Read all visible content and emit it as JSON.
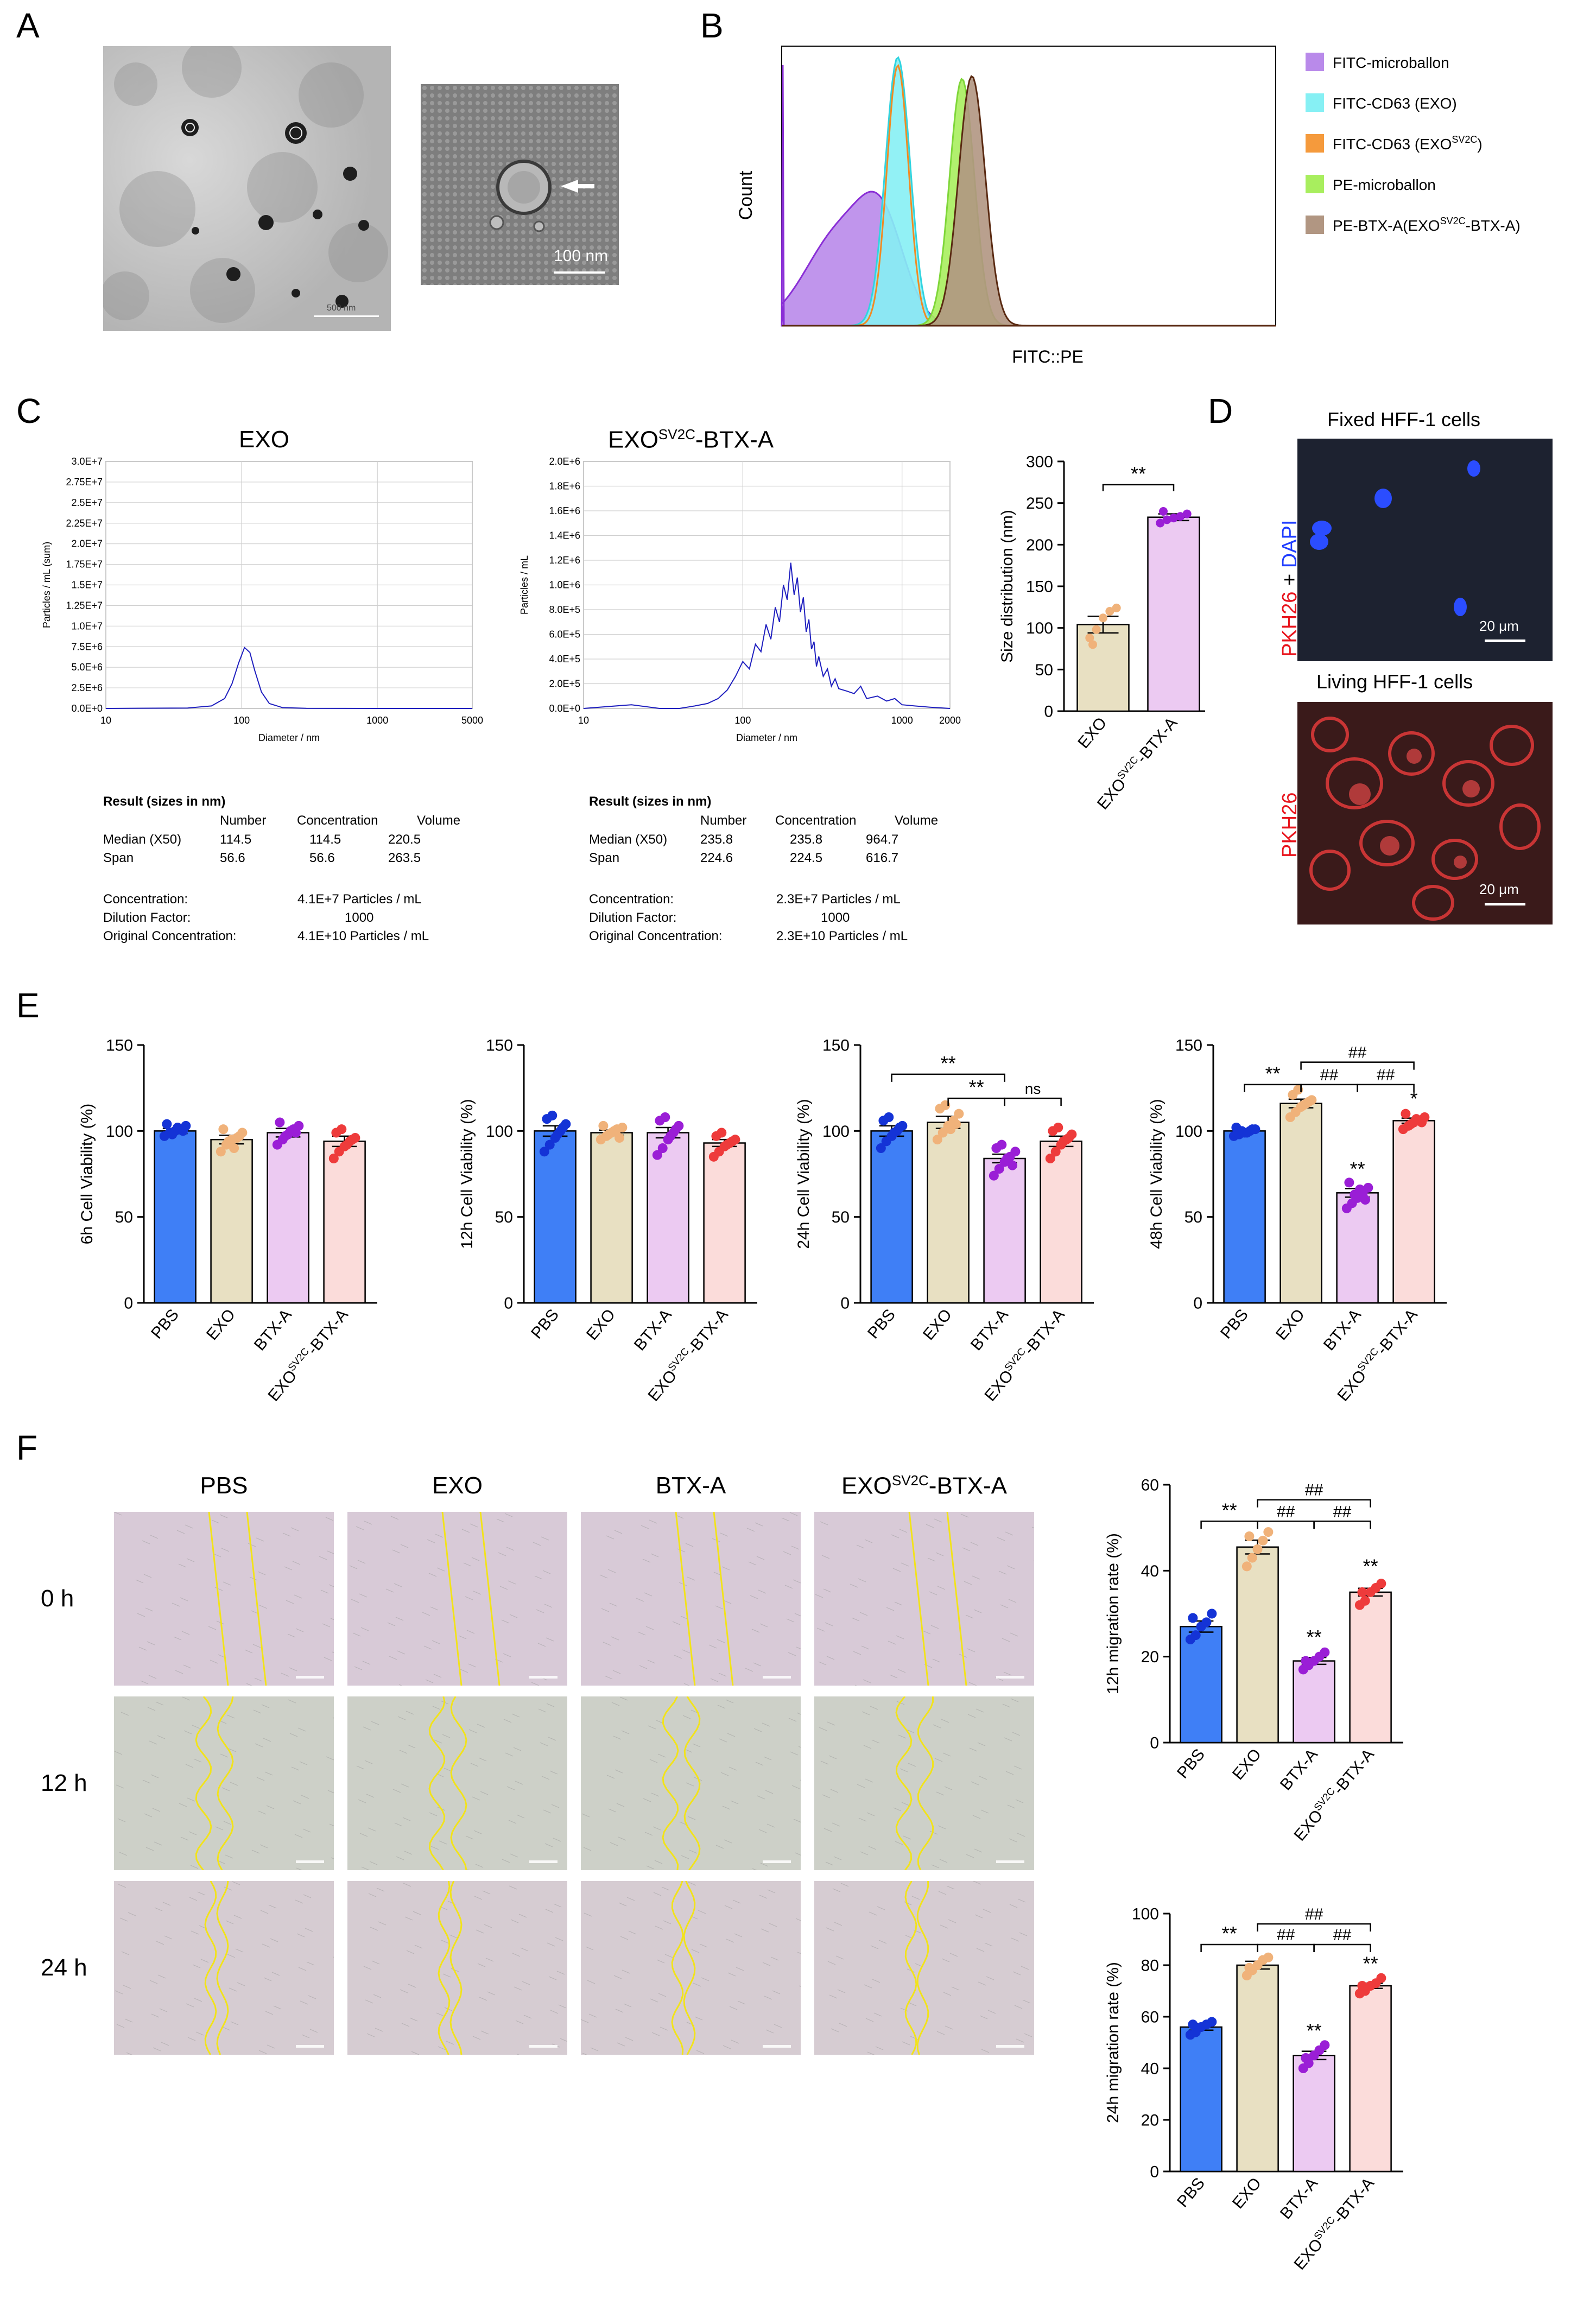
{
  "panel_labels": {
    "A": "A",
    "B": "B",
    "C": "C",
    "D": "D",
    "E": "E",
    "F": "F"
  },
  "panelA": {
    "scale_bar_right": "100 nm",
    "scale_bar_left": "500 nm"
  },
  "panelB": {
    "ylabel": "Count",
    "xlabel": "FITC::PE",
    "legend": [
      {
        "name": "FITC-microballon",
        "color": "#b98aea"
      },
      {
        "name": "FITC-CD63 (EXO)",
        "color": "#86f0f4"
      },
      {
        "name": "FITC-CD63 (EXO^SV2C)",
        "pre": "FITC-CD63 (EXO",
        "sup": "SV2C",
        "post": ")",
        "color": "#f59a3c"
      },
      {
        "name": "PE-microballon",
        "color": "#a8ee5e"
      },
      {
        "name": "PE-BTX-A(EXO^SV2C-BTX-A)",
        "pre": "PE-BTX-A(EXO",
        "sup": "SV2C",
        "post": "-BTX-A)",
        "color": "#b19682"
      }
    ]
  },
  "panelC": {
    "exo": {
      "title": "EXO",
      "ylabel": "Particles / mL (sum)",
      "xlabel": "Diameter / nm",
      "yticks": [
        "0.0E+0",
        "2.5E+6",
        "5.0E+6",
        "7.5E+6",
        "1.0E+7",
        "1.25E+7",
        "1.5E+7",
        "1.75E+7",
        "2.0E+7",
        "2.25E+7",
        "2.5E+7",
        "2.75E+7",
        "3.0E+7"
      ],
      "xticks": [
        "10",
        "100",
        "1000",
        "5000"
      ],
      "result_title": "Result (sizes in nm)",
      "hdr_number": "Number",
      "hdr_conc": "Concentration",
      "hdr_vol": "Volume",
      "median_label": "Median (X50)",
      "median": [
        "114.5",
        "114.5",
        "220.5"
      ],
      "span_label": "Span",
      "span": [
        "56.6",
        "56.6",
        "263.5"
      ],
      "conc_label": "Concentration:",
      "conc": "4.1E+7 Particles / mL",
      "dil_label": "Dilution Factor:",
      "dil": "1000",
      "orig_label": "Original Concentration:",
      "orig": "4.1E+10 Particles / mL"
    },
    "btx": {
      "title_pre": "EXO",
      "title_sup": "SV2C",
      "title_post": "-BTX-A",
      "ylabel": "Particles / mL",
      "xlabel": "Diameter / nm",
      "yticks": [
        "0.0E+0",
        "2.0E+5",
        "4.0E+5",
        "6.0E+5",
        "8.0E+5",
        "1.0E+6",
        "1.2E+6",
        "1.4E+6",
        "1.6E+6",
        "1.8E+6",
        "2.0E+6"
      ],
      "xticks": [
        "10",
        "100",
        "1000",
        "2000"
      ],
      "result_title": "Result (sizes in nm)",
      "hdr_number": "Number",
      "hdr_conc": "Concentration",
      "hdr_vol": "Volume",
      "median_label": "Median (X50)",
      "median": [
        "235.8",
        "235.8",
        "964.7"
      ],
      "span_label": "Span",
      "span": [
        "224.6",
        "224.5",
        "616.7"
      ],
      "conc_label": "Concentration:",
      "conc": "2.3E+7 Particles / mL",
      "dil_label": "Dilution Factor:",
      "dil": "1000",
      "orig_label": "Original Concentration:",
      "orig": "2.3E+10 Particles / mL"
    },
    "bar_ylabel": "Size distribution (nm)",
    "bar_sig": "**"
  },
  "panelD": {
    "fixed_title": "Fixed HFF-1 cells",
    "living_title": "Living HFF-1 cells",
    "label_pkh": "PKH26",
    "label_plus": " + ",
    "label_dapi": "DAPI",
    "scale": "20 μm"
  },
  "colors": {
    "PBS": "#3f7ff6",
    "EXO": "#e8e0c2",
    "BTX-A": "#eccaf2",
    "EXO_SV2C_BTX": "#fbdcda",
    "dot_PBS": "#1433d6",
    "dot_EXO": "#f0b27a",
    "dot_BTX": "#9a1ed6",
    "dot_EXOSV": "#ee3b3b"
  },
  "categories": [
    "PBS",
    "EXO",
    "BTX-A",
    "EXO^SV2C-BTX-A"
  ],
  "cat_sup": {
    "pre": "EXO",
    "sup": "SV2C",
    "post": "-BTX-A"
  },
  "panelF": {
    "cols": [
      "PBS",
      "EXO",
      "BTX-A",
      "EXO^SV2C-BTX-A"
    ],
    "rows": [
      "0 h",
      "12 h",
      "24 h"
    ]
  },
  "chart_data": [
    {
      "id": "C_exo_nta",
      "type": "line",
      "title": "EXO",
      "xlabel": "Diameter / nm",
      "ylabel": "Particles / mL (sum)",
      "xscale": "log",
      "xlim": [
        10,
        5000
      ],
      "ylim": [
        0,
        30000000
      ],
      "x": [
        10,
        40,
        60,
        75,
        85,
        95,
        105,
        115,
        125,
        140,
        160,
        200,
        300,
        1000,
        5000
      ],
      "y": [
        0,
        50000,
        300000,
        1200000,
        3000000,
        5500000,
        7400000,
        6800000,
        4600000,
        2000000,
        600000,
        100000,
        20000,
        0,
        0
      ]
    },
    {
      "id": "C_btx_nta",
      "type": "line",
      "title": "EXO^SV2C-BTX-A",
      "xlabel": "Diameter / nm",
      "ylabel": "Particles / mL",
      "xscale": "log",
      "xlim": [
        10,
        2000
      ],
      "ylim": [
        0,
        2000000
      ],
      "x": [
        10,
        20,
        30,
        40,
        50,
        60,
        70,
        80,
        90,
        100,
        110,
        120,
        130,
        140,
        150,
        160,
        170,
        180,
        190,
        200,
        210,
        220,
        230,
        240,
        250,
        260,
        270,
        280,
        290,
        300,
        320,
        340,
        360,
        380,
        400,
        450,
        500,
        550,
        600,
        700,
        800,
        900,
        1000,
        1200,
        1500,
        2000
      ],
      "y": [
        0,
        30000,
        0,
        0,
        20000,
        40000,
        80000,
        150000,
        260000,
        380000,
        320000,
        520000,
        460000,
        680000,
        560000,
        820000,
        700000,
        1000000,
        880000,
        1180000,
        920000,
        1060000,
        780000,
        900000,
        620000,
        720000,
        480000,
        540000,
        340000,
        420000,
        260000,
        320000,
        180000,
        240000,
        160000,
        140000,
        120000,
        180000,
        80000,
        100000,
        60000,
        80000,
        30000,
        20000,
        10000,
        0
      ]
    },
    {
      "id": "C_size",
      "type": "bar",
      "ylabel": "Size distribution (nm)",
      "ylim": [
        0,
        300
      ],
      "categories": [
        "EXO",
        "EXO^SV2C-BTX-A"
      ],
      "values": [
        104,
        233
      ],
      "sem": [
        10,
        4
      ],
      "points": [
        [
          88,
          98,
          112,
          120,
          124,
          80
        ],
        [
          226,
          230,
          232,
          234,
          237,
          240
        ]
      ]
    },
    {
      "id": "E_6h",
      "type": "bar",
      "ylabel": "6h Cell Viability (%)",
      "ylim": [
        0,
        150
      ],
      "categories": [
        "PBS",
        "EXO",
        "BTX-A",
        "EXO^SV2C-BTX-A"
      ],
      "values": [
        100,
        95,
        99,
        94
      ],
      "sem": [
        1.5,
        2.5,
        2.5,
        3
      ],
      "points": [
        [
          97,
          99,
          100,
          101,
          103,
          104,
          98,
          102,
          100
        ],
        [
          88,
          92,
          95,
          96,
          99,
          101,
          94,
          90,
          97
        ],
        [
          92,
          95,
          98,
          101,
          103,
          105,
          97,
          100,
          99
        ],
        [
          84,
          88,
          91,
          94,
          96,
          99,
          101,
          92,
          95
        ]
      ]
    },
    {
      "id": "E_12h",
      "type": "bar",
      "ylabel": "12h Cell Viability (%)",
      "ylim": [
        0,
        150
      ],
      "categories": [
        "PBS",
        "EXO",
        "BTX-A",
        "EXO^SV2C-BTX-A"
      ],
      "values": [
        100,
        99,
        99,
        93
      ],
      "sem": [
        3,
        1.5,
        3,
        2
      ],
      "points": [
        [
          88,
          92,
          96,
          100,
          104,
          107,
          109,
          98,
          102
        ],
        [
          95,
          97,
          99,
          101,
          102,
          103,
          98,
          100,
          96
        ],
        [
          86,
          90,
          95,
          99,
          103,
          106,
          108,
          97,
          101
        ],
        [
          85,
          88,
          91,
          93,
          95,
          97,
          99,
          92,
          94
        ]
      ]
    },
    {
      "id": "E_24h",
      "type": "bar",
      "ylabel": "24h Cell Viability (%)",
      "ylim": [
        0,
        150
      ],
      "categories": [
        "PBS",
        "EXO",
        "BTX-A",
        "EXO^SV2C-BTX-A"
      ],
      "values": [
        100,
        105,
        84,
        94
      ],
      "sem": [
        3,
        3.5,
        2.5,
        3
      ],
      "points": [
        [
          90,
          94,
          97,
          100,
          103,
          106,
          108,
          99,
          102
        ],
        [
          95,
          99,
          103,
          106,
          110,
          113,
          115,
          101,
          104
        ],
        [
          74,
          78,
          82,
          85,
          88,
          90,
          92,
          84,
          80
        ],
        [
          84,
          88,
          92,
          95,
          98,
          100,
          102,
          94,
          96
        ]
      ],
      "annotations": [
        "** PBS vs BTX-A",
        "** EXO vs BTX-A",
        "ns BTX-A vs EXO^SV2C-BTX-A"
      ]
    },
    {
      "id": "E_48h",
      "type": "bar",
      "ylabel": "48h Cell Viability (%)",
      "ylim": [
        0,
        150
      ],
      "categories": [
        "PBS",
        "EXO",
        "BTX-A",
        "EXO^SV2C-BTX-A"
      ],
      "values": [
        100,
        116,
        64,
        106
      ],
      "sem": [
        1,
        2.5,
        2.5,
        1.5
      ],
      "points": [
        [
          97,
          98,
          99,
          100,
          101,
          102,
          100,
          99,
          101
        ],
        [
          108,
          111,
          114,
          116,
          118,
          121,
          124,
          115,
          117
        ],
        [
          55,
          58,
          61,
          64,
          67,
          70,
          63,
          66,
          60
        ],
        [
          101,
          103,
          105,
          106,
          108,
          110,
          104,
          107,
          105
        ]
      ],
      "annotations": [
        "** PBS vs EXO",
        "## EXO vs BTX-A",
        "## BTX-A vs EXO^SV2C-BTX-A",
        "## EXO vs EXO^SV2C-BTX-A",
        "** BTX-A",
        "* EXO^SV2C-BTX-A"
      ]
    },
    {
      "id": "F_12h",
      "type": "bar",
      "ylabel": "12h migration rate (%)",
      "ylim": [
        0,
        60
      ],
      "categories": [
        "PBS",
        "EXO",
        "BTX-A",
        "EXO^SV2C-BTX-A"
      ],
      "values": [
        27,
        45.5,
        19,
        35
      ],
      "sem": [
        1.3,
        1.6,
        0.8,
        0.9
      ],
      "points": [
        [
          24,
          25,
          27,
          28,
          30,
          29
        ],
        [
          41,
          43,
          45,
          47,
          49,
          48
        ],
        [
          17,
          18,
          19,
          20,
          21,
          19
        ],
        [
          32,
          33,
          35,
          36,
          37,
          35
        ]
      ],
      "annotations": [
        "** PBS vs EXO",
        "## EXO vs BTX-A",
        "## BTX-A vs EXO^SV2C-BTX-A",
        "## EXO vs EXO^SV2C-BTX-A",
        "** BTX-A",
        "** EXO^SV2C-BTX-A"
      ]
    },
    {
      "id": "F_24h",
      "type": "bar",
      "ylabel": "24h migration rate (%)",
      "ylim": [
        0,
        100
      ],
      "categories": [
        "PBS",
        "EXO",
        "BTX-A",
        "EXO^SV2C-BTX-A"
      ],
      "values": [
        56,
        80,
        45,
        72
      ],
      "sem": [
        1.2,
        1.5,
        1.6,
        1
      ],
      "points": [
        [
          53,
          54,
          56,
          57,
          58,
          57
        ],
        [
          76,
          78,
          80,
          82,
          83,
          79
        ],
        [
          40,
          42,
          45,
          47,
          49,
          44
        ],
        [
          69,
          70,
          72,
          73,
          75,
          72
        ]
      ],
      "annotations": [
        "** PBS vs EXO",
        "## EXO vs BTX-A",
        "## BTX-A vs EXO^SV2C-BTX-A",
        "## EXO vs EXO^SV2C-BTX-A",
        "** BTX-A",
        "** EXO^SV2C-BTX-A"
      ]
    }
  ]
}
